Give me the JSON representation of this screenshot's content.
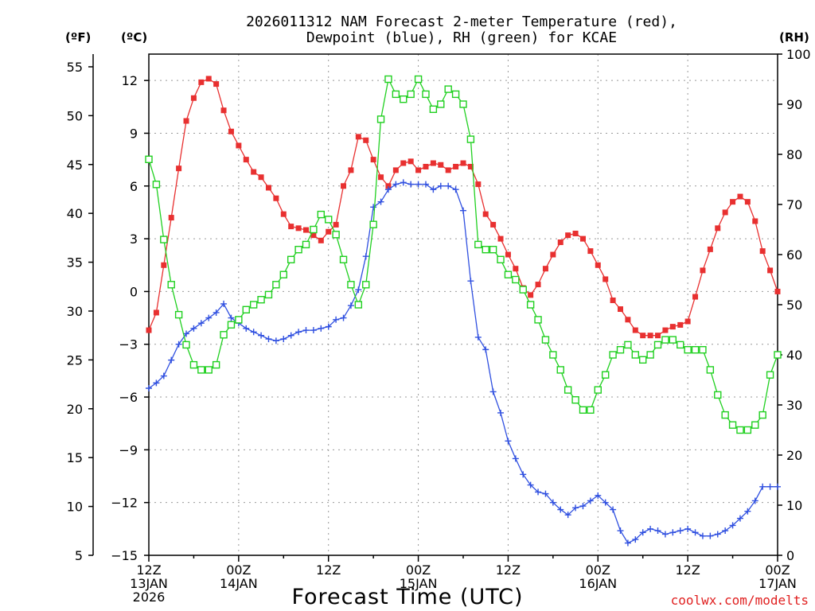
{
  "chart_data": {
    "type": "line",
    "title": [
      "2026011312 NAM Forecast 2-meter Temperature (red),",
      "Dewpoint (blue), RH (green) for KCAE"
    ],
    "xlabel": "Forecast Time (UTC)",
    "left_unit_f": "(ºF)",
    "left_unit_c": "(ºC)",
    "right_unit": "(RH)",
    "credit": "coolwx.com/modelts",
    "x_hours_range": [
      0,
      84
    ],
    "celsius_range": [
      -15,
      13.5
    ],
    "fahrenheit_range": [
      5,
      56.3
    ],
    "rh_range": [
      0,
      100
    ],
    "celsius_ticks": [
      "12",
      "9",
      "6",
      "3",
      "0",
      "−3",
      "−6",
      "−9",
      "−12",
      "−15"
    ],
    "celsius_tick_values": [
      12,
      9,
      6,
      3,
      0,
      -3,
      -6,
      -9,
      -12,
      -15
    ],
    "fahrenheit_ticks": [
      "55",
      "50",
      "45",
      "40",
      "35",
      "30",
      "25",
      "20",
      "15",
      "10",
      "5"
    ],
    "fahrenheit_tick_values": [
      55,
      50,
      45,
      40,
      35,
      30,
      25,
      20,
      15,
      10,
      5
    ],
    "rh_ticks": [
      "100",
      "90",
      "80",
      "70",
      "60",
      "50",
      "40",
      "30",
      "20",
      "10",
      "0"
    ],
    "rh_tick_values": [
      100,
      90,
      80,
      70,
      60,
      50,
      40,
      30,
      20,
      10,
      0
    ],
    "x_ticks": [
      {
        "hour": 0,
        "lines": [
          "12Z",
          "13JAN",
          "2026"
        ]
      },
      {
        "hour": 12,
        "lines": [
          "00Z",
          "14JAN"
        ]
      },
      {
        "hour": 24,
        "lines": [
          "12Z"
        ]
      },
      {
        "hour": 36,
        "lines": [
          "00Z",
          "15JAN"
        ]
      },
      {
        "hour": 48,
        "lines": [
          "12Z"
        ]
      },
      {
        "hour": 60,
        "lines": [
          "00Z",
          "16JAN"
        ]
      },
      {
        "hour": 72,
        "lines": [
          "12Z"
        ]
      },
      {
        "hour": 84,
        "lines": [
          "00Z",
          "17JAN"
        ]
      }
    ],
    "x": [
      0,
      1,
      2,
      3,
      4,
      5,
      6,
      7,
      8,
      9,
      10,
      11,
      12,
      13,
      14,
      15,
      16,
      17,
      18,
      19,
      20,
      21,
      22,
      23,
      24,
      25,
      26,
      27,
      28,
      29,
      30,
      31,
      32,
      33,
      34,
      35,
      36,
      37,
      38,
      39,
      40,
      41,
      42,
      43,
      44,
      45,
      46,
      47,
      48,
      49,
      50,
      51,
      52,
      53,
      54,
      55,
      56,
      57,
      58,
      59,
      60,
      61,
      62,
      63,
      64,
      65,
      66,
      67,
      68,
      69,
      70,
      71,
      72,
      73,
      74,
      75,
      76,
      77,
      78,
      79,
      80,
      81,
      82,
      83,
      84
    ],
    "series": [
      {
        "name": "Temperature",
        "unit": "C",
        "color": "#e83030",
        "marker": "square-filled",
        "values": [
          -2.2,
          -1.2,
          1.5,
          4.2,
          7.0,
          9.7,
          11.0,
          11.9,
          12.1,
          11.8,
          10.3,
          9.1,
          8.3,
          7.5,
          6.8,
          6.5,
          5.9,
          5.3,
          4.4,
          3.7,
          3.6,
          3.5,
          3.2,
          2.9,
          3.4,
          3.8,
          6.0,
          6.9,
          8.8,
          8.6,
          7.5,
          6.5,
          6.0,
          6.9,
          7.3,
          7.4,
          6.9,
          7.1,
          7.3,
          7.2,
          6.9,
          7.1,
          7.3,
          7.1,
          6.1,
          4.4,
          3.8,
          3.0,
          2.1,
          1.3,
          0.2,
          -0.2,
          0.4,
          1.3,
          2.1,
          2.8,
          3.2,
          3.3,
          3.0,
          2.3,
          1.5,
          0.7,
          -0.5,
          -1.0,
          -1.6,
          -2.2,
          -2.5,
          -2.5,
          -2.5,
          -2.2,
          -2.0,
          -1.9,
          -1.7,
          -0.3,
          1.2,
          2.4,
          3.6,
          4.5,
          5.1,
          5.4,
          5.1,
          4.0,
          2.3,
          1.2,
          0.0
        ]
      },
      {
        "name": "Dewpoint",
        "unit": "C",
        "color": "#3050e0",
        "marker": "plus",
        "values": [
          -5.5,
          -5.2,
          -4.8,
          -3.9,
          -3.0,
          -2.4,
          -2.1,
          -1.8,
          -1.5,
          -1.2,
          -0.7,
          -1.5,
          -1.8,
          -2.1,
          -2.3,
          -2.5,
          -2.7,
          -2.8,
          -2.7,
          -2.5,
          -2.3,
          -2.2,
          -2.2,
          -2.1,
          -2.0,
          -1.6,
          -1.5,
          -0.8,
          0.1,
          2.0,
          4.8,
          5.1,
          5.8,
          6.1,
          6.2,
          6.1,
          6.1,
          6.1,
          5.8,
          6.0,
          6.0,
          5.8,
          4.6,
          0.6,
          -2.6,
          -3.3,
          -5.7,
          -6.9,
          -8.5,
          -9.5,
          -10.4,
          -11.0,
          -11.4,
          -11.5,
          -12.0,
          -12.4,
          -12.7,
          -12.3,
          -12.2,
          -11.9,
          -11.6,
          -12.0,
          -12.4,
          -13.6,
          -14.3,
          -14.1,
          -13.7,
          -13.5,
          -13.6,
          -13.8,
          -13.7,
          -13.6,
          -13.5,
          -13.7,
          -13.9,
          -13.9,
          -13.8,
          -13.6,
          -13.3,
          -12.9,
          -12.5,
          -11.9,
          -11.1,
          -11.1,
          -11.1
        ]
      },
      {
        "name": "RH",
        "unit": "%",
        "color": "#20d020",
        "marker": "square-open",
        "values": [
          79,
          74,
          63,
          54,
          48,
          42,
          38,
          37,
          37,
          38,
          44,
          46,
          47,
          49,
          50,
          51,
          52,
          54,
          56,
          59,
          61,
          62,
          65,
          68,
          67,
          64,
          59,
          54,
          50,
          54,
          66,
          87,
          95,
          92,
          91,
          92,
          95,
          92,
          89,
          90,
          93,
          92,
          90,
          83,
          62,
          61,
          61,
          59,
          56,
          55,
          53,
          50,
          47,
          43,
          40,
          37,
          33,
          31,
          29,
          29,
          33,
          36,
          40,
          41,
          42,
          40,
          39,
          40,
          42,
          43,
          43,
          42,
          41,
          41,
          41,
          37,
          32,
          28,
          26,
          25,
          25,
          26,
          28,
          36,
          40
        ]
      }
    ]
  }
}
